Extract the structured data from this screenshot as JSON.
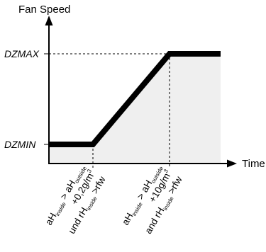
{
  "diagram": {
    "y_axis_label": "Fan Speed",
    "x_axis_label": "Time",
    "levels": {
      "max": "DZMAX",
      "min": "DZMIN"
    },
    "conditions": [
      {
        "lines": [
          [
            {
              "t": "aH"
            },
            {
              "t": "inside",
              "sub": true
            },
            {
              "t": " > aH"
            },
            {
              "t": "outside",
              "sub": true
            }
          ],
          [
            {
              "t": "+0,2g/m"
            },
            {
              "t": "3",
              "sup": true
            }
          ],
          [
            {
              "t": "und rH"
            },
            {
              "t": "inside",
              "sub": true
            },
            {
              "t": " >rfw"
            }
          ]
        ]
      },
      {
        "lines": [
          [
            {
              "t": "aH"
            },
            {
              "t": "inside",
              "sub": true
            },
            {
              "t": " > aH"
            },
            {
              "t": "outside",
              "sub": true
            }
          ],
          [
            {
              "t": "+10g/m"
            },
            {
              "t": "3",
              "sup": true
            }
          ],
          [
            {
              "t": "and rH"
            },
            {
              "t": "inside",
              "sub": true
            },
            {
              "t": " >rfw"
            }
          ]
        ]
      }
    ],
    "colors": {
      "line": "#000000",
      "fill": "#efefef",
      "axis": "#000000"
    }
  }
}
